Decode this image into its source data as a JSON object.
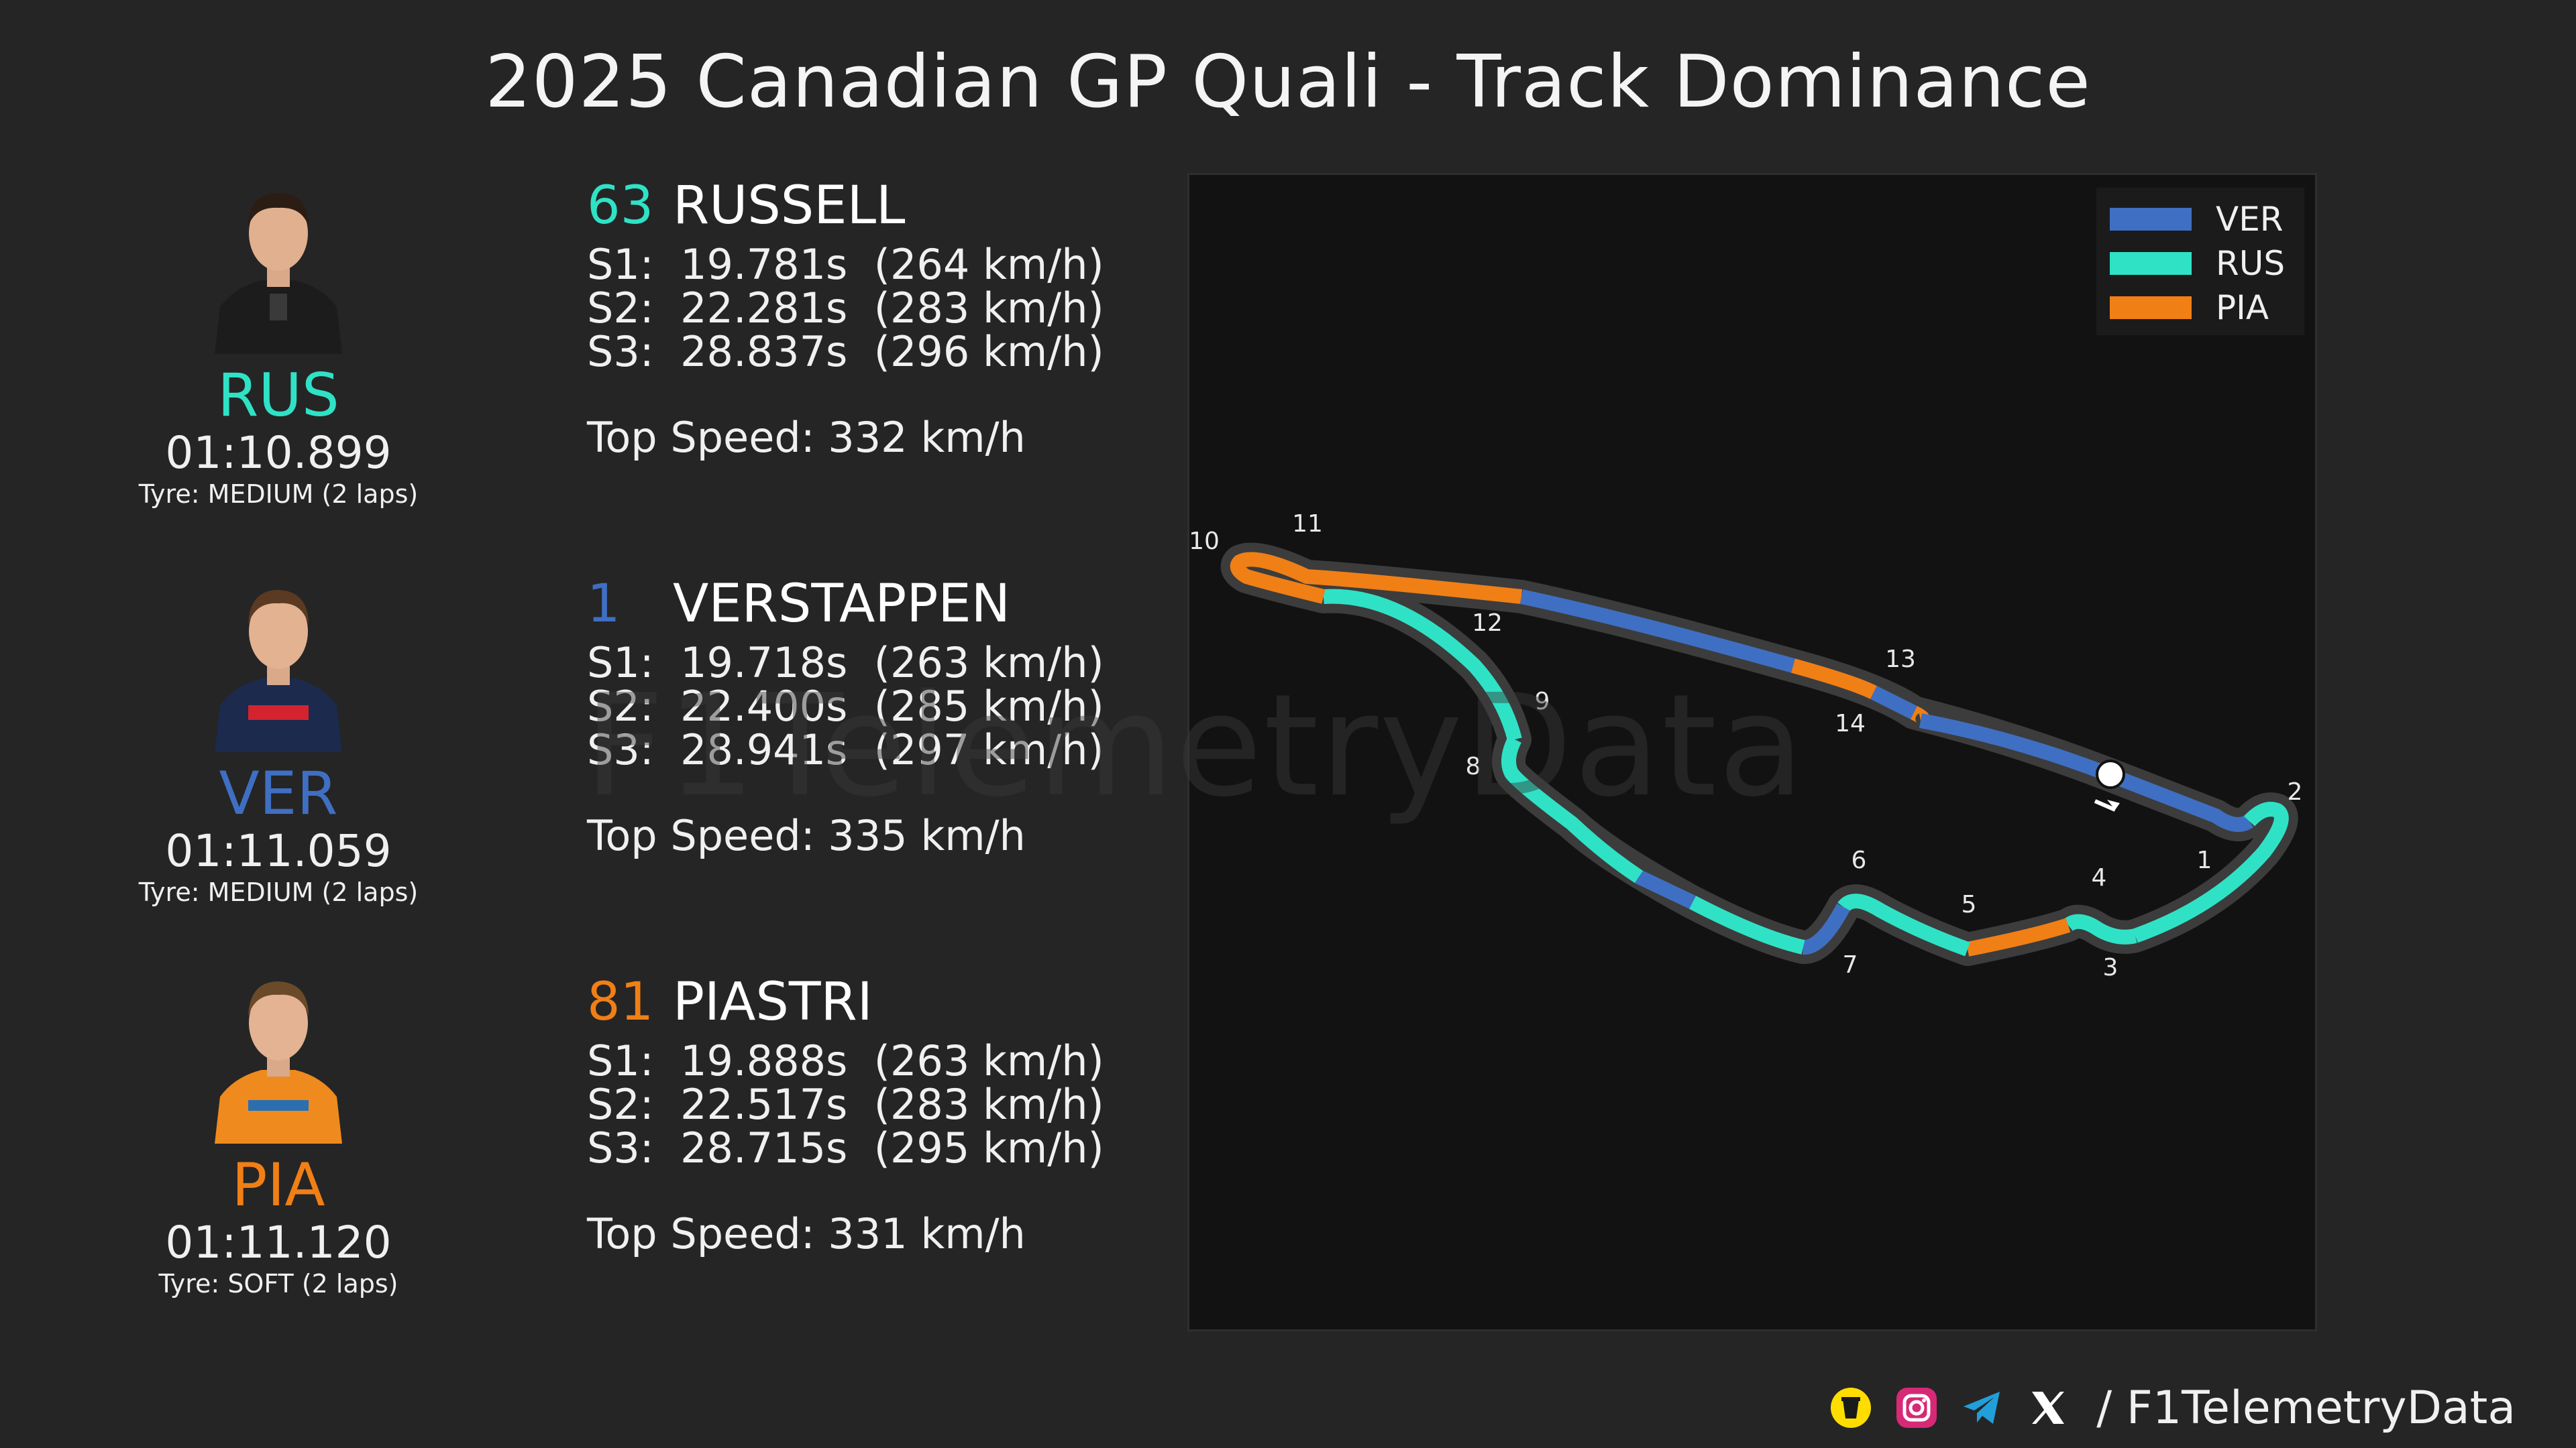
{
  "title": "2025 Canadian GP Quali - Track Dominance",
  "drivers": [
    {
      "code": "RUS",
      "color": "#2fe2c6",
      "lap_time": "01:10.899",
      "tyre": "Tyre: MEDIUM (2 laps)",
      "number": "63",
      "name": "RUSSELL",
      "s1": "S1:  19.781s  (264 km/h)",
      "s2": "S2:  22.281s  (283 km/h)",
      "s3": "S3:  28.837s  (296 km/h)",
      "top_speed": "Top Speed: 332 km/h",
      "suit_color": "#1c1c1c"
    },
    {
      "code": "VER",
      "color": "#3f6fc2",
      "lap_time": "01:11.059",
      "tyre": "Tyre: MEDIUM (2 laps)",
      "number": "1",
      "name": "VERSTAPPEN",
      "s1": "S1:  19.718s  (263 km/h)",
      "s2": "S2:  22.400s  (285 km/h)",
      "s3": "S3:  28.941s  (297 km/h)",
      "top_speed": "Top Speed: 335 km/h",
      "suit_color": "#1b2a4d"
    },
    {
      "code": "PIA",
      "color": "#f07f16",
      "lap_time": "01:11.120",
      "tyre": "Tyre: SOFT (2 laps)",
      "number": "81",
      "name": "PIASTRI",
      "s1": "S1:  19.888s  (263 km/h)",
      "s2": "S2:  22.517s  (283 km/h)",
      "s3": "S3:  28.715s  (295 km/h)",
      "top_speed": "Top Speed: 331 km/h",
      "suit_color": "#ef8a1e"
    }
  ],
  "legend": [
    {
      "label": "VER",
      "color": "#3f6fc2"
    },
    {
      "label": "RUS",
      "color": "#2fe2c6"
    },
    {
      "label": "PIA",
      "color": "#f07f16"
    }
  ],
  "watermark": "F1TelemetryData",
  "track": {
    "corner_labels": [
      "1",
      "2",
      "3",
      "4",
      "5",
      "6",
      "7",
      "8",
      "9",
      "10",
      "11",
      "12",
      "13",
      "14"
    ],
    "segment_owners": [
      "VER",
      "RUS",
      "RUS",
      "PIA",
      "RUS",
      "VER",
      "RUS",
      "VER",
      "RUS",
      "RUS",
      "PIA",
      "VER",
      "PIA",
      "VER",
      "PIA",
      "VER"
    ]
  },
  "footer": {
    "icons": [
      "bmc-icon",
      "instagram-icon",
      "telegram-icon",
      "x-icon"
    ],
    "handle": "/ F1TelemetryData"
  }
}
